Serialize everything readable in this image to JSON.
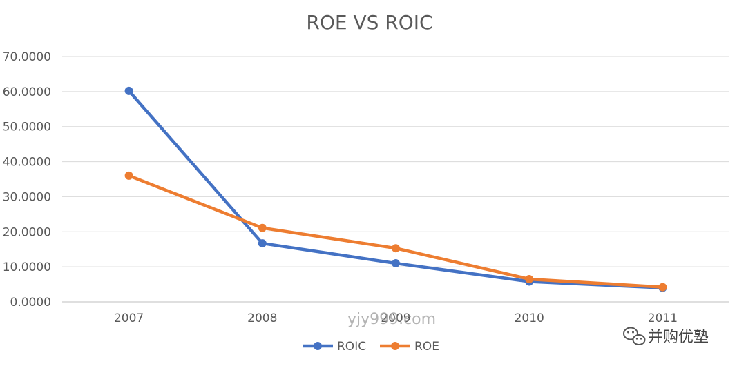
{
  "chart_data": {
    "type": "line",
    "title": "ROE VS ROIC",
    "categories": [
      "2007",
      "2008",
      "2009",
      "2010",
      "2011"
    ],
    "series": [
      {
        "name": "ROIC",
        "color": "#4472C4",
        "values": [
          60.2,
          16.7,
          11.0,
          5.8,
          4.0
        ]
      },
      {
        "name": "ROE",
        "color": "#ED7D31",
        "values": [
          36.0,
          21.1,
          15.3,
          6.5,
          4.2
        ]
      }
    ],
    "yticks": [
      "0.0000",
      "10.0000",
      "20.0000",
      "30.0000",
      "40.0000",
      "50.0000",
      "60.0000",
      "70.0000"
    ],
    "ylim": [
      0,
      70
    ],
    "grid": true,
    "legend": "bottom"
  },
  "watermark": "yjy999.com",
  "brand": {
    "icon": "wechat-icon",
    "text": "并购优塾"
  }
}
